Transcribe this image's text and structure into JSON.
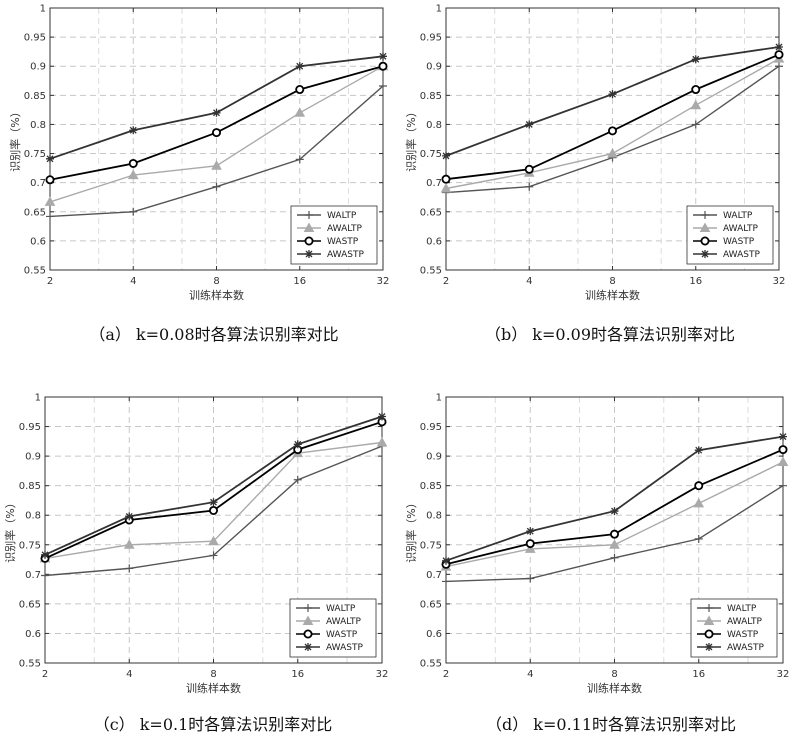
{
  "chart_data": [
    {
      "type": "line",
      "caption": "（a） k=0.08时各算法识别率对比",
      "xlabel": "训练样本数",
      "ylabel": "识别率（%）",
      "x": [
        2,
        4,
        8,
        16,
        32
      ],
      "x_scale": "log2",
      "ylim": [
        0.55,
        1.0
      ],
      "yticks": [
        "0.55",
        "0.6",
        "0.65",
        "0.7",
        "0.75",
        "0.8",
        "0.85",
        "0.9",
        "0.95",
        "1"
      ],
      "grid": true,
      "legend_position": "bottom-right",
      "series": [
        {
          "name": "WALTP",
          "color": "#555555",
          "marker": "plus",
          "values": [
            0.642,
            0.65,
            0.693,
            0.74,
            0.866
          ]
        },
        {
          "name": "AWALTP",
          "color": "#aaaaaa",
          "marker": "triangle",
          "values": [
            0.667,
            0.713,
            0.729,
            0.82,
            0.9
          ]
        },
        {
          "name": "WASTP",
          "color": "#000000",
          "marker": "circle",
          "values": [
            0.705,
            0.733,
            0.786,
            0.86,
            0.9
          ]
        },
        {
          "name": "AWASTP",
          "color": "#333333",
          "marker": "star",
          "values": [
            0.741,
            0.79,
            0.82,
            0.9,
            0.917
          ]
        }
      ]
    },
    {
      "type": "line",
      "caption": "（b） k=0.09时各算法识别率对比",
      "xlabel": "训练样本数",
      "ylabel": "识别率（%）",
      "x": [
        2,
        4,
        8,
        16,
        32
      ],
      "x_scale": "log2",
      "ylim": [
        0.55,
        1.0
      ],
      "yticks": [
        "0.55",
        "0.6",
        "0.65",
        "0.7",
        "0.75",
        "0.8",
        "0.85",
        "0.9",
        "0.95",
        "1"
      ],
      "grid": true,
      "legend_position": "bottom-right",
      "series": [
        {
          "name": "WALTP",
          "color": "#555555",
          "marker": "plus",
          "values": [
            0.683,
            0.693,
            0.743,
            0.8,
            0.9
          ]
        },
        {
          "name": "AWALTP",
          "color": "#aaaaaa",
          "marker": "triangle",
          "values": [
            0.69,
            0.717,
            0.75,
            0.833,
            0.913
          ]
        },
        {
          "name": "WASTP",
          "color": "#000000",
          "marker": "circle",
          "values": [
            0.706,
            0.723,
            0.789,
            0.86,
            0.92
          ]
        },
        {
          "name": "AWASTP",
          "color": "#333333",
          "marker": "star",
          "values": [
            0.746,
            0.8,
            0.852,
            0.912,
            0.933
          ]
        }
      ]
    },
    {
      "type": "line",
      "caption": "（c） k=0.1时各算法识别率对比",
      "xlabel": "训练样本数",
      "ylabel": "识别率（%）",
      "x": [
        2,
        4,
        8,
        16,
        32
      ],
      "x_scale": "log2",
      "ylim": [
        0.55,
        1.0
      ],
      "yticks": [
        "0.55",
        "0.6",
        "0.65",
        "0.7",
        "0.75",
        "0.8",
        "0.85",
        "0.9",
        "0.95",
        "1"
      ],
      "grid": true,
      "legend_position": "bottom-right",
      "series": [
        {
          "name": "WALTP",
          "color": "#555555",
          "marker": "plus",
          "values": [
            0.698,
            0.71,
            0.732,
            0.86,
            0.917
          ]
        },
        {
          "name": "AWALTP",
          "color": "#aaaaaa",
          "marker": "triangle",
          "values": [
            0.727,
            0.75,
            0.756,
            0.905,
            0.923
          ]
        },
        {
          "name": "WASTP",
          "color": "#000000",
          "marker": "circle",
          "values": [
            0.727,
            0.792,
            0.808,
            0.911,
            0.958
          ]
        },
        {
          "name": "AWASTP",
          "color": "#333333",
          "marker": "star",
          "values": [
            0.733,
            0.798,
            0.822,
            0.92,
            0.967
          ]
        }
      ]
    },
    {
      "type": "line",
      "caption": "（d） k=0.11时各算法识别率对比",
      "xlabel": "训练样本数",
      "ylabel": "识别率（%）",
      "x": [
        2,
        4,
        8,
        16,
        32
      ],
      "x_scale": "log2",
      "ylim": [
        0.55,
        1.0
      ],
      "yticks": [
        "0.55",
        "0.6",
        "0.65",
        "0.7",
        "0.75",
        "0.8",
        "0.85",
        "0.9",
        "0.95",
        "1"
      ],
      "grid": true,
      "legend_position": "bottom-right",
      "series": [
        {
          "name": "WALTP",
          "color": "#555555",
          "marker": "plus",
          "values": [
            0.688,
            0.693,
            0.728,
            0.76,
            0.85
          ]
        },
        {
          "name": "AWALTP",
          "color": "#aaaaaa",
          "marker": "triangle",
          "values": [
            0.713,
            0.743,
            0.75,
            0.82,
            0.89
          ]
        },
        {
          "name": "WASTP",
          "color": "#000000",
          "marker": "circle",
          "values": [
            0.717,
            0.752,
            0.768,
            0.85,
            0.911
          ]
        },
        {
          "name": "AWASTP",
          "color": "#333333",
          "marker": "star",
          "values": [
            0.723,
            0.773,
            0.807,
            0.91,
            0.933
          ]
        }
      ]
    }
  ]
}
